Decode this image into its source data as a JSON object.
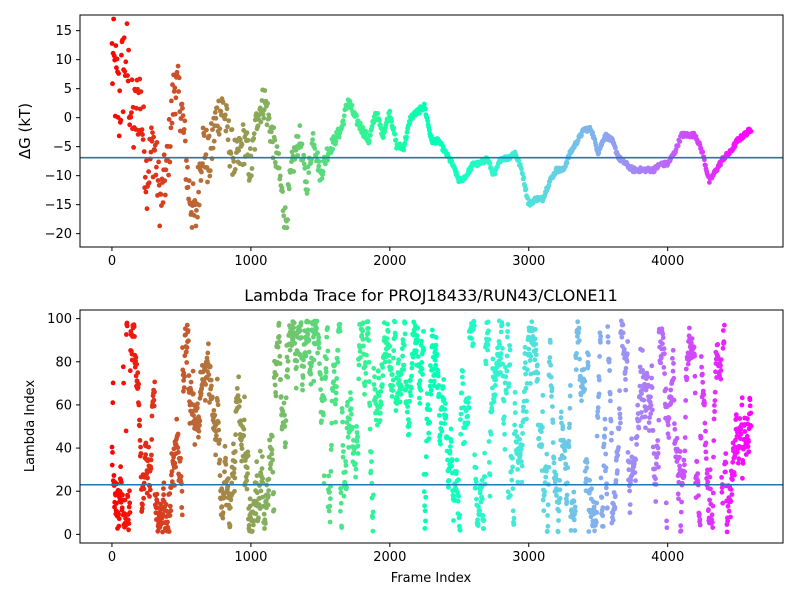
{
  "chart_data": [
    {
      "type": "scatter",
      "title": "",
      "xlabel": "",
      "ylabel": "ΔG (kT)",
      "xlim": [
        -230,
        4830
      ],
      "ylim": [
        -22.3,
        17.7
      ],
      "xticks": [
        0,
        1000,
        2000,
        3000,
        4000
      ],
      "yticks": [
        -20,
        -15,
        -10,
        -5,
        0,
        5,
        10,
        15
      ],
      "colormap": "rainbow",
      "hline": {
        "y": -6.9,
        "color": "#1f77b4"
      },
      "trace": {
        "x": [
          0,
          50,
          100,
          150,
          200,
          250,
          300,
          350,
          400,
          450,
          500,
          550,
          600,
          650,
          700,
          750,
          800,
          850,
          900,
          950,
          1000,
          1050,
          1100,
          1150,
          1200,
          1250,
          1300,
          1350,
          1400,
          1450,
          1500,
          1550,
          1600,
          1650,
          1700,
          1750,
          1800,
          1850,
          1900,
          1950,
          2000,
          2050,
          2100,
          2150,
          2200,
          2250,
          2300,
          2350,
          2400,
          2450,
          2500,
          2550,
          2600,
          2650,
          2700,
          2750,
          2800,
          2850,
          2900,
          2950,
          3000,
          3050,
          3100,
          3150,
          3200,
          3250,
          3300,
          3350,
          3400,
          3450,
          3500,
          3550,
          3600,
          3650,
          3700,
          3750,
          3800,
          3850,
          3900,
          3950,
          4000,
          4050,
          4100,
          4150,
          4200,
          4250,
          4300,
          4350,
          4400,
          4450,
          4500,
          4550,
          4600
        ],
        "y": [
          10,
          2,
          12,
          -2,
          4,
          -10,
          -4,
          -15,
          -8,
          6,
          2,
          -12,
          -18,
          -4,
          -8,
          0,
          2,
          -5,
          -8,
          -4,
          -9,
          1,
          3,
          -3,
          -9,
          -18,
          -8,
          -3,
          -12,
          -3,
          -10,
          -6,
          -4,
          -2,
          3,
          0,
          -2,
          -4,
          1,
          -3,
          1,
          -5,
          -5,
          0,
          1,
          2,
          -4,
          -4,
          -6,
          -8,
          -11,
          -10,
          -8,
          -8,
          -7,
          -10,
          -7,
          -7,
          -6,
          -9,
          -15,
          -14,
          -14,
          -11,
          -9,
          -9,
          -6,
          -4,
          -2,
          -2,
          -6,
          -3,
          -4,
          -7,
          -8,
          -9,
          -9,
          -9,
          -9,
          -8,
          -8,
          -6,
          -3,
          -3,
          -3,
          -6,
          -11,
          -9,
          -7,
          -6,
          -4,
          -3,
          -2
        ],
        "spread": [
          9,
          9,
          9,
          7,
          7,
          6,
          6,
          5,
          5,
          5,
          5,
          5,
          5,
          5,
          5,
          4,
          4,
          4,
          4,
          4,
          4,
          3,
          3,
          3,
          3,
          3,
          3,
          2,
          2,
          2,
          1.5,
          1.5,
          1,
          1,
          1,
          0.8,
          0.8,
          0.8,
          0.8,
          0.6,
          0.6,
          0.6,
          0.6,
          0.5,
          0.5,
          0.5,
          0.5,
          0.4,
          0.4,
          0.4,
          0.4,
          0.4,
          0.4,
          0.4,
          0.4,
          0.4,
          0.4,
          0.4,
          0.4,
          0.4,
          0.4,
          0.4,
          0.4,
          0.4,
          0.4,
          0.4,
          0.4,
          0.4,
          0.4,
          0.4,
          0.4,
          0.4,
          0.4,
          0.4,
          0.4,
          0.4,
          0.4,
          0.4,
          0.4,
          0.4,
          0.4,
          0.4,
          0.4,
          0.4,
          0.4,
          0.4,
          0.4,
          0.4,
          0.4,
          0.4,
          0.4,
          0.4,
          0.4
        ]
      }
    },
    {
      "type": "scatter",
      "title": "Lambda Trace for PROJ18433/RUN43/CLONE11",
      "xlabel": "Frame Index",
      "ylabel": "Lambda Index",
      "xlim": [
        -230,
        4830
      ],
      "ylim": [
        -4,
        104
      ],
      "xticks": [
        0,
        1000,
        2000,
        3000,
        4000
      ],
      "yticks": [
        0,
        20,
        40,
        60,
        80,
        100
      ],
      "colormap": "rainbow",
      "hline": {
        "y": 23,
        "color": "#1f77b4"
      },
      "lambda_range": [
        1,
        99
      ],
      "frame_range": [
        0,
        4600
      ]
    }
  ]
}
